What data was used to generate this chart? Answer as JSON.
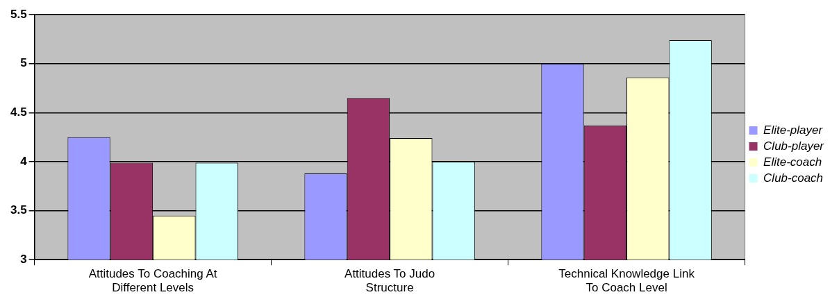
{
  "chart_data": {
    "type": "bar",
    "categories": [
      "Attitudes To Coaching At Different Levels",
      "Attitudes To Judo Structure",
      "Technical Knowledge Link To Coach Level"
    ],
    "series": [
      {
        "name": "Elite-player",
        "color": "#9999ff",
        "values": [
          4.25,
          3.88,
          5.0
        ]
      },
      {
        "name": "Club-player",
        "color": "#993366",
        "values": [
          3.99,
          4.65,
          4.37
        ]
      },
      {
        "name": "Elite-coach",
        "color": "#ffffcc",
        "values": [
          3.45,
          4.24,
          4.86
        ]
      },
      {
        "name": "Club-coach",
        "color": "#ccffff",
        "values": [
          3.99,
          4.0,
          5.24
        ]
      }
    ],
    "ylim": [
      3,
      5.5
    ],
    "yticks": [
      3,
      3.5,
      4,
      4.5,
      5,
      5.5
    ],
    "grid": "y",
    "legend": "right"
  }
}
